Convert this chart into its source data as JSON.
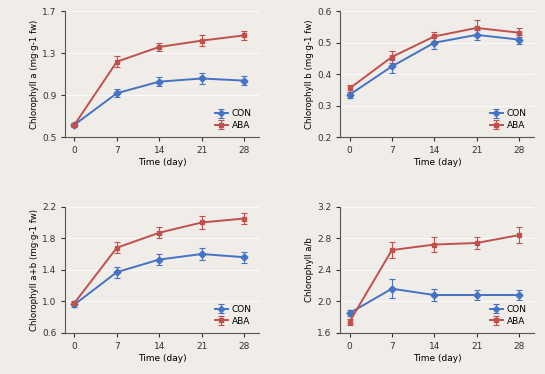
{
  "time": [
    0,
    7,
    14,
    21,
    28
  ],
  "chl_a": {
    "CON": [
      0.62,
      0.92,
      1.03,
      1.06,
      1.04
    ],
    "ABA": [
      0.62,
      1.22,
      1.36,
      1.42,
      1.47
    ],
    "CON_err": [
      0.02,
      0.04,
      0.04,
      0.05,
      0.04
    ],
    "ABA_err": [
      0.02,
      0.05,
      0.04,
      0.05,
      0.04
    ],
    "ylabel": "Chlorophyll a (mg·g-1 fw)",
    "ylim": [
      0.5,
      1.7
    ],
    "yticks": [
      0.5,
      0.9,
      1.3,
      1.7
    ]
  },
  "chl_b": {
    "CON": [
      0.335,
      0.425,
      0.5,
      0.525,
      0.51
    ],
    "ABA": [
      0.355,
      0.455,
      0.52,
      0.547,
      0.532
    ],
    "CON_err": [
      0.01,
      0.02,
      0.02,
      0.015,
      0.015
    ],
    "ABA_err": [
      0.01,
      0.02,
      0.015,
      0.025,
      0.015
    ],
    "ylabel": "Chlorophyll b (mg·g-1 fw)",
    "ylim": [
      0.2,
      0.6
    ],
    "yticks": [
      0.2,
      0.3,
      0.4,
      0.5,
      0.6
    ]
  },
  "chl_ab": {
    "CON": [
      0.96,
      1.37,
      1.53,
      1.6,
      1.56
    ],
    "ABA": [
      0.98,
      1.68,
      1.87,
      2.0,
      2.05
    ],
    "CON_err": [
      0.03,
      0.07,
      0.07,
      0.08,
      0.07
    ],
    "ABA_err": [
      0.03,
      0.07,
      0.07,
      0.08,
      0.07
    ],
    "ylabel": "Chlorophyll a+b (mg·g-1 fw)",
    "ylim": [
      0.6,
      2.2
    ],
    "yticks": [
      0.6,
      1.0,
      1.4,
      1.8,
      2.2
    ]
  },
  "chl_ratio": {
    "CON": [
      1.85,
      2.16,
      2.08,
      2.08,
      2.08
    ],
    "ABA": [
      1.74,
      2.65,
      2.72,
      2.74,
      2.84
    ],
    "CON_err": [
      0.04,
      0.12,
      0.08,
      0.06,
      0.06
    ],
    "ABA_err": [
      0.04,
      0.1,
      0.1,
      0.08,
      0.1
    ],
    "ylabel": "Chlorophyll a/b",
    "ylim": [
      1.6,
      3.2
    ],
    "yticks": [
      1.6,
      2.0,
      2.4,
      2.8,
      3.2
    ]
  },
  "con_color": "#4472C4",
  "aba_color": "#C0504D",
  "marker_con": "D",
  "marker_aba": "s",
  "xlabel": "Time (day)",
  "xticks": [
    0,
    7,
    14,
    21,
    28
  ],
  "bg_color": "#f0ece8"
}
